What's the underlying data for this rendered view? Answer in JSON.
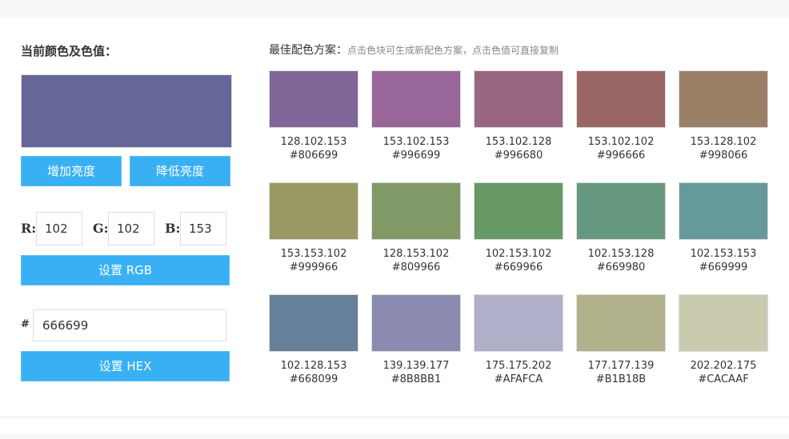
{
  "left": {
    "title": "当前颜色及色值：",
    "current_color": "#666699",
    "brighten": "增加亮度",
    "darken": "降低亮度",
    "r_label": "R:",
    "g_label": "G:",
    "b_label": "B:",
    "r": "102",
    "g": "102",
    "b": "153",
    "set_rgb": "设置 RGB",
    "hash_label": "#",
    "hex": "666699",
    "set_hex": "设置 HEX"
  },
  "right": {
    "title": "最佳配色方案：",
    "hint": "点击色块可生成新配色方案，点击色值可直接复制",
    "swatches": [
      {
        "rgb": "128.102.153",
        "hex": "#806699"
      },
      {
        "rgb": "153.102.153",
        "hex": "#996699"
      },
      {
        "rgb": "153.102.128",
        "hex": "#996680"
      },
      {
        "rgb": "153.102.102",
        "hex": "#996666"
      },
      {
        "rgb": "153.128.102",
        "hex": "#998066"
      },
      {
        "rgb": "153.153.102",
        "hex": "#999966"
      },
      {
        "rgb": "128.153.102",
        "hex": "#809966"
      },
      {
        "rgb": "102.153.102",
        "hex": "#669966"
      },
      {
        "rgb": "102.153.128",
        "hex": "#669980"
      },
      {
        "rgb": "102.153.153",
        "hex": "#669999"
      },
      {
        "rgb": "102.128.153",
        "hex": "#668099"
      },
      {
        "rgb": "139.139.177",
        "hex": "#8B8BB1"
      },
      {
        "rgb": "175.175.202",
        "hex": "#AFAFCA"
      },
      {
        "rgb": "177.177.139",
        "hex": "#B1B18B"
      },
      {
        "rgb": "202.202.175",
        "hex": "#CACAAF"
      }
    ]
  }
}
